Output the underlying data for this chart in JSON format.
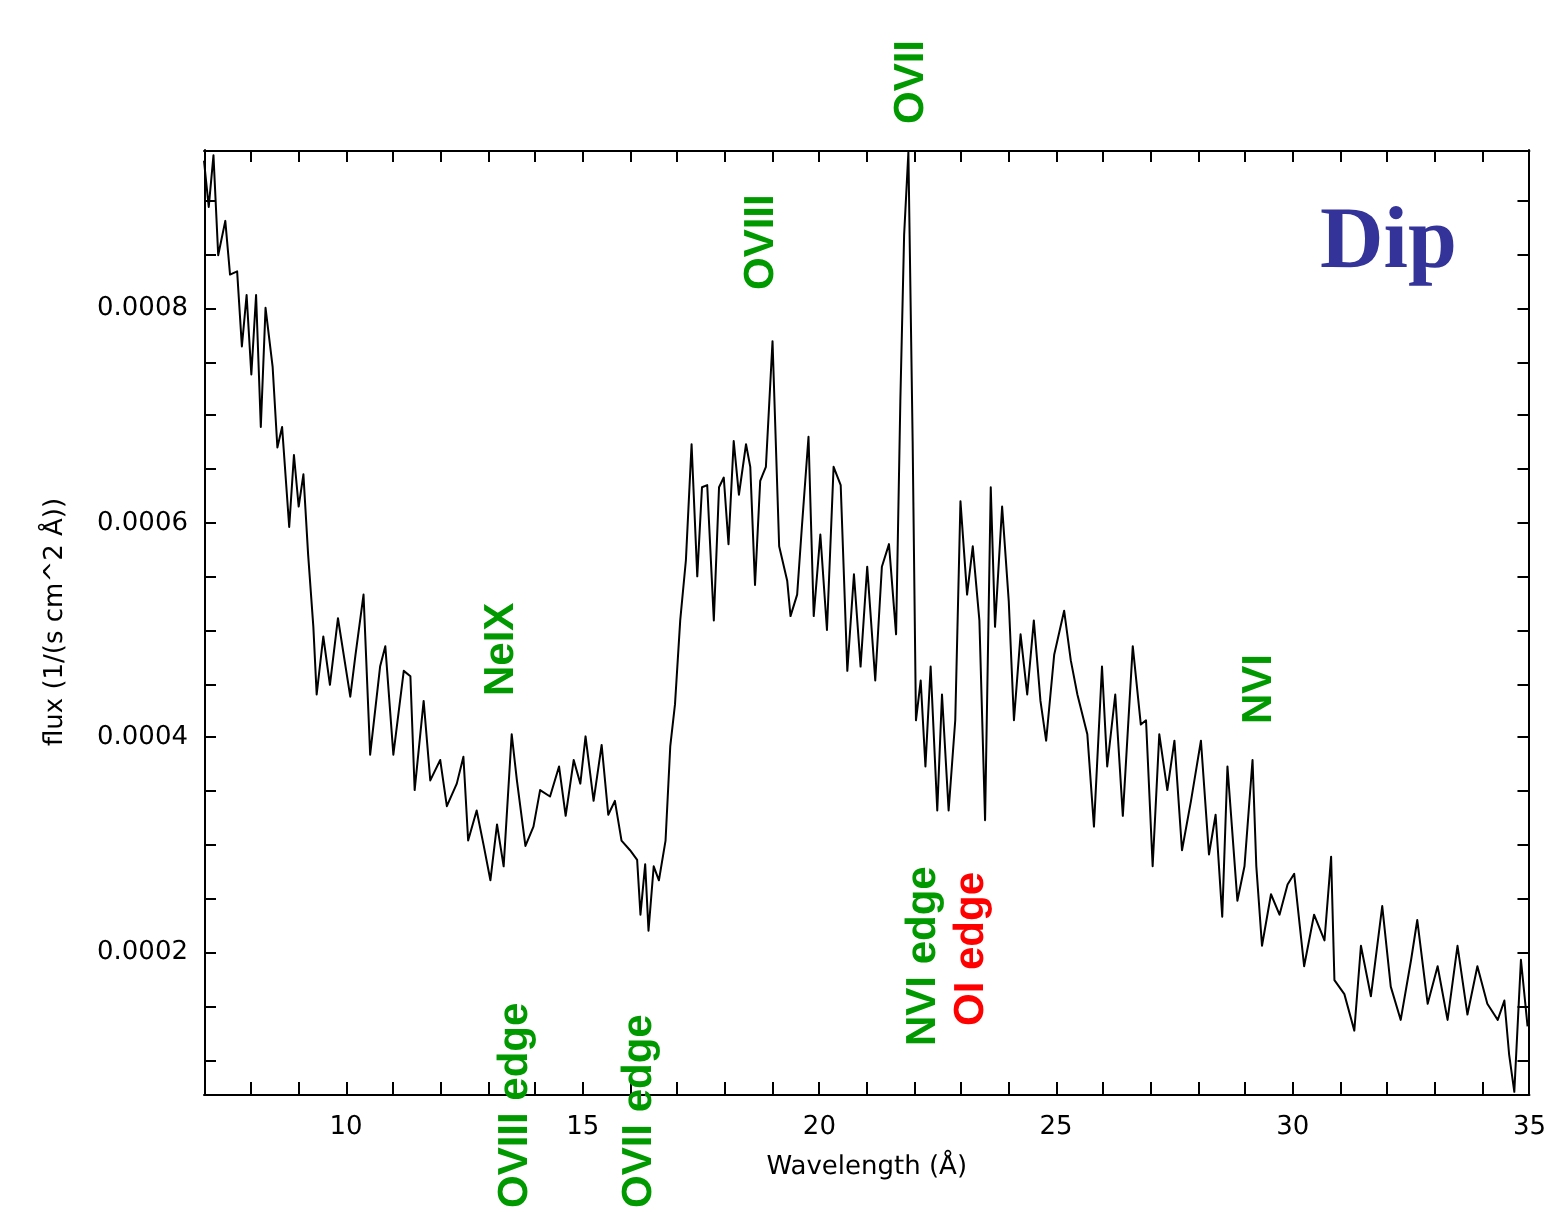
{
  "chart_data": {
    "type": "line",
    "title": "Dip",
    "xlabel": "Wavelength (Å)",
    "ylabel": "flux (1/(s cm^2 Å))",
    "xlim": [
      7,
      35
    ],
    "ylim": [
      6.8e-05,
      0.000947
    ],
    "xticks": [
      {
        "value": 8,
        "label": null
      },
      {
        "value": 9,
        "label": null
      },
      10,
      {
        "value": 11,
        "label": null
      },
      {
        "value": 12,
        "label": null
      },
      {
        "value": 13,
        "label": null
      },
      {
        "value": 14,
        "label": null
      },
      15,
      {
        "value": 16,
        "label": null
      },
      {
        "value": 17,
        "label": null
      },
      {
        "value": 18,
        "label": null
      },
      {
        "value": 19,
        "label": null
      },
      20,
      {
        "value": 21,
        "label": null
      },
      {
        "value": 22,
        "label": null
      },
      {
        "value": 23,
        "label": null
      },
      {
        "value": 24,
        "label": null
      },
      25,
      {
        "value": 26,
        "label": null
      },
      {
        "value": 27,
        "label": null
      },
      {
        "value": 28,
        "label": null
      },
      {
        "value": 29,
        "label": null
      },
      30,
      {
        "value": 31,
        "label": null
      },
      {
        "value": 32,
        "label": null
      },
      {
        "value": 33,
        "label": null
      },
      {
        "value": 34,
        "label": null
      },
      35
    ],
    "yticks": [
      {
        "value": 0.0001,
        "label": null
      },
      {
        "value": 0.00015,
        "label": null
      },
      0.0002,
      {
        "value": 0.00025,
        "label": null
      },
      {
        "value": 0.0003,
        "label": null
      },
      {
        "value": 0.00035,
        "label": null
      },
      0.0004,
      {
        "value": 0.00045,
        "label": null
      },
      {
        "value": 0.0005,
        "label": null
      },
      {
        "value": 0.00055,
        "label": null
      },
      0.0006,
      {
        "value": 0.00065,
        "label": null
      },
      {
        "value": 0.0007,
        "label": null
      },
      {
        "value": 0.00075,
        "label": null
      },
      0.0008,
      {
        "value": 0.00085,
        "label": null
      },
      {
        "value": 0.0009,
        "label": null
      }
    ],
    "grid": false,
    "marker": "none",
    "line_style": "solid",
    "annotations": [
      "NeIX",
      "OVIII",
      "OVII",
      "NVI",
      "NVI edge",
      "OI edge",
      "OVIII edge",
      "OVII edge"
    ],
    "series": [
      {
        "color": "#000000",
        "x": [
          7.0,
          7.1,
          7.2,
          7.3,
          7.45,
          7.55,
          7.7,
          7.8,
          7.9,
          8.0,
          8.1,
          8.2,
          8.3,
          8.45,
          8.55,
          8.65,
          8.8,
          8.9,
          9.0,
          9.1,
          9.2,
          9.31,
          9.38,
          9.52,
          9.66,
          9.83,
          10.09,
          10.2,
          10.37,
          10.51,
          10.72,
          10.83,
          11.0,
          11.22,
          11.36,
          11.45,
          11.64,
          11.78,
          11.99,
          12.13,
          12.34,
          12.48,
          12.58,
          12.76,
          12.91,
          13.05,
          13.19,
          13.33,
          13.5,
          13.61,
          13.79,
          13.96,
          14.1,
          14.31,
          14.5,
          14.64,
          14.81,
          14.95,
          15.06,
          15.23,
          15.4,
          15.54,
          15.68,
          15.82,
          16.0,
          16.15,
          16.22,
          16.32,
          16.39,
          16.5,
          16.61,
          16.75,
          16.85,
          16.95,
          17.06,
          17.18,
          17.3,
          17.42,
          17.52,
          17.63,
          17.77,
          17.88,
          17.98,
          18.08,
          18.19,
          18.3,
          18.45,
          18.54,
          18.64,
          18.75,
          18.87,
          19.01,
          19.15,
          19.32,
          19.39,
          19.53,
          19.63,
          19.77,
          19.88,
          20.02,
          20.16,
          20.3,
          20.45,
          20.59,
          20.73,
          20.87,
          21.01,
          21.18,
          21.32,
          21.47,
          21.62,
          21.71,
          21.79,
          21.88,
          21.97,
          22.04,
          22.14,
          22.24,
          22.35,
          22.49,
          22.59,
          22.73,
          22.87,
          22.98,
          23.12,
          23.24,
          23.38,
          23.5,
          23.62,
          23.71,
          23.86,
          24.0,
          24.11,
          24.25,
          24.39,
          24.53,
          24.67,
          24.79,
          24.96,
          25.17,
          25.31,
          25.45,
          25.66,
          25.8,
          25.97,
          26.08,
          26.25,
          26.41,
          26.62,
          26.79,
          26.9,
          27.04,
          27.18,
          27.35,
          27.5,
          27.66,
          27.85,
          28.06,
          28.23,
          28.37,
          28.51,
          28.62,
          28.83,
          28.98,
          29.15,
          29.23,
          29.35,
          29.54,
          29.72,
          29.89,
          30.03,
          30.24,
          30.45,
          30.67,
          30.81,
          30.88,
          31.09,
          31.3,
          31.44,
          31.65,
          31.89,
          32.07,
          32.28,
          32.5,
          32.63,
          32.85,
          33.06,
          33.27,
          33.48,
          33.69,
          33.9,
          34.11,
          34.33,
          34.47,
          34.57,
          34.68,
          34.82,
          34.96
        ],
        "values": [
          0.000937,
          0.000894,
          0.000942,
          0.000849,
          0.000881,
          0.000831,
          0.000834,
          0.000764,
          0.000812,
          0.000738,
          0.000812,
          0.000689,
          0.0008,
          0.000745,
          0.00067,
          0.000689,
          0.000596,
          0.000663,
          0.000615,
          0.000645,
          0.00057,
          0.000503,
          0.00044,
          0.000494,
          0.000449,
          0.000511,
          0.000438,
          0.000477,
          0.000533,
          0.000384,
          0.000466,
          0.000485,
          0.000384,
          0.000462,
          0.000457,
          0.000351,
          0.000434,
          0.00036,
          0.000379,
          0.000336,
          0.000357,
          0.000382,
          0.000304,
          0.000332,
          0.000299,
          0.000267,
          0.000319,
          0.00028,
          0.000403,
          0.00036,
          0.000299,
          0.000317,
          0.000351,
          0.000345,
          0.000373,
          0.000327,
          0.000379,
          0.000357,
          0.000401,
          0.000341,
          0.000393,
          0.000328,
          0.000341,
          0.000304,
          0.000295,
          0.000286,
          0.000235,
          0.000282,
          0.00022,
          0.00028,
          0.000267,
          0.000304,
          0.000392,
          0.000431,
          0.000509,
          0.000565,
          0.000673,
          0.00055,
          0.000633,
          0.000635,
          0.000509,
          0.000633,
          0.000642,
          0.00058,
          0.000676,
          0.000626,
          0.000673,
          0.000652,
          0.000542,
          0.000639,
          0.000652,
          0.000769,
          0.000578,
          0.000546,
          0.000513,
          0.000533,
          0.000596,
          0.00068,
          0.000513,
          0.000589,
          0.0005,
          0.000652,
          0.000635,
          0.000462,
          0.000552,
          0.000466,
          0.000559,
          0.000453,
          0.000559,
          0.00058,
          0.000496,
          0.000713,
          0.000868,
          0.000945,
          0.000676,
          0.000416,
          0.000453,
          0.000373,
          0.000466,
          0.000332,
          0.00044,
          0.000332,
          0.000416,
          0.00062,
          0.000533,
          0.000578,
          0.000509,
          0.000323,
          0.000633,
          0.000503,
          0.000615,
          0.000527,
          0.000416,
          0.000496,
          0.00044,
          0.000509,
          0.000434,
          0.000397,
          0.000477,
          0.000518,
          0.000472,
          0.00044,
          0.000403,
          0.000317,
          0.000466,
          0.000373,
          0.00044,
          0.000327,
          0.000485,
          0.000412,
          0.000416,
          0.00028,
          0.000403,
          0.000351,
          0.000397,
          0.000295,
          0.000341,
          0.000397,
          0.000291,
          0.000328,
          0.000233,
          0.000373,
          0.000248,
          0.00028,
          0.000379,
          0.00028,
          0.000206,
          0.000254,
          0.000235,
          0.000263,
          0.000273,
          0.000187,
          0.000235,
          0.000211,
          0.000289,
          0.000174,
          0.000161,
          0.000127,
          0.000206,
          0.000159,
          0.000243,
          0.000168,
          0.000137,
          0.000193,
          0.00023,
          0.000152,
          0.000187,
          0.000137,
          0.000206,
          0.000142,
          0.000187,
          0.000152,
          0.000137,
          0.000155,
          0.000105,
          7e-05,
          0.000193,
          0.000131
        ]
      }
    ]
  }
}
